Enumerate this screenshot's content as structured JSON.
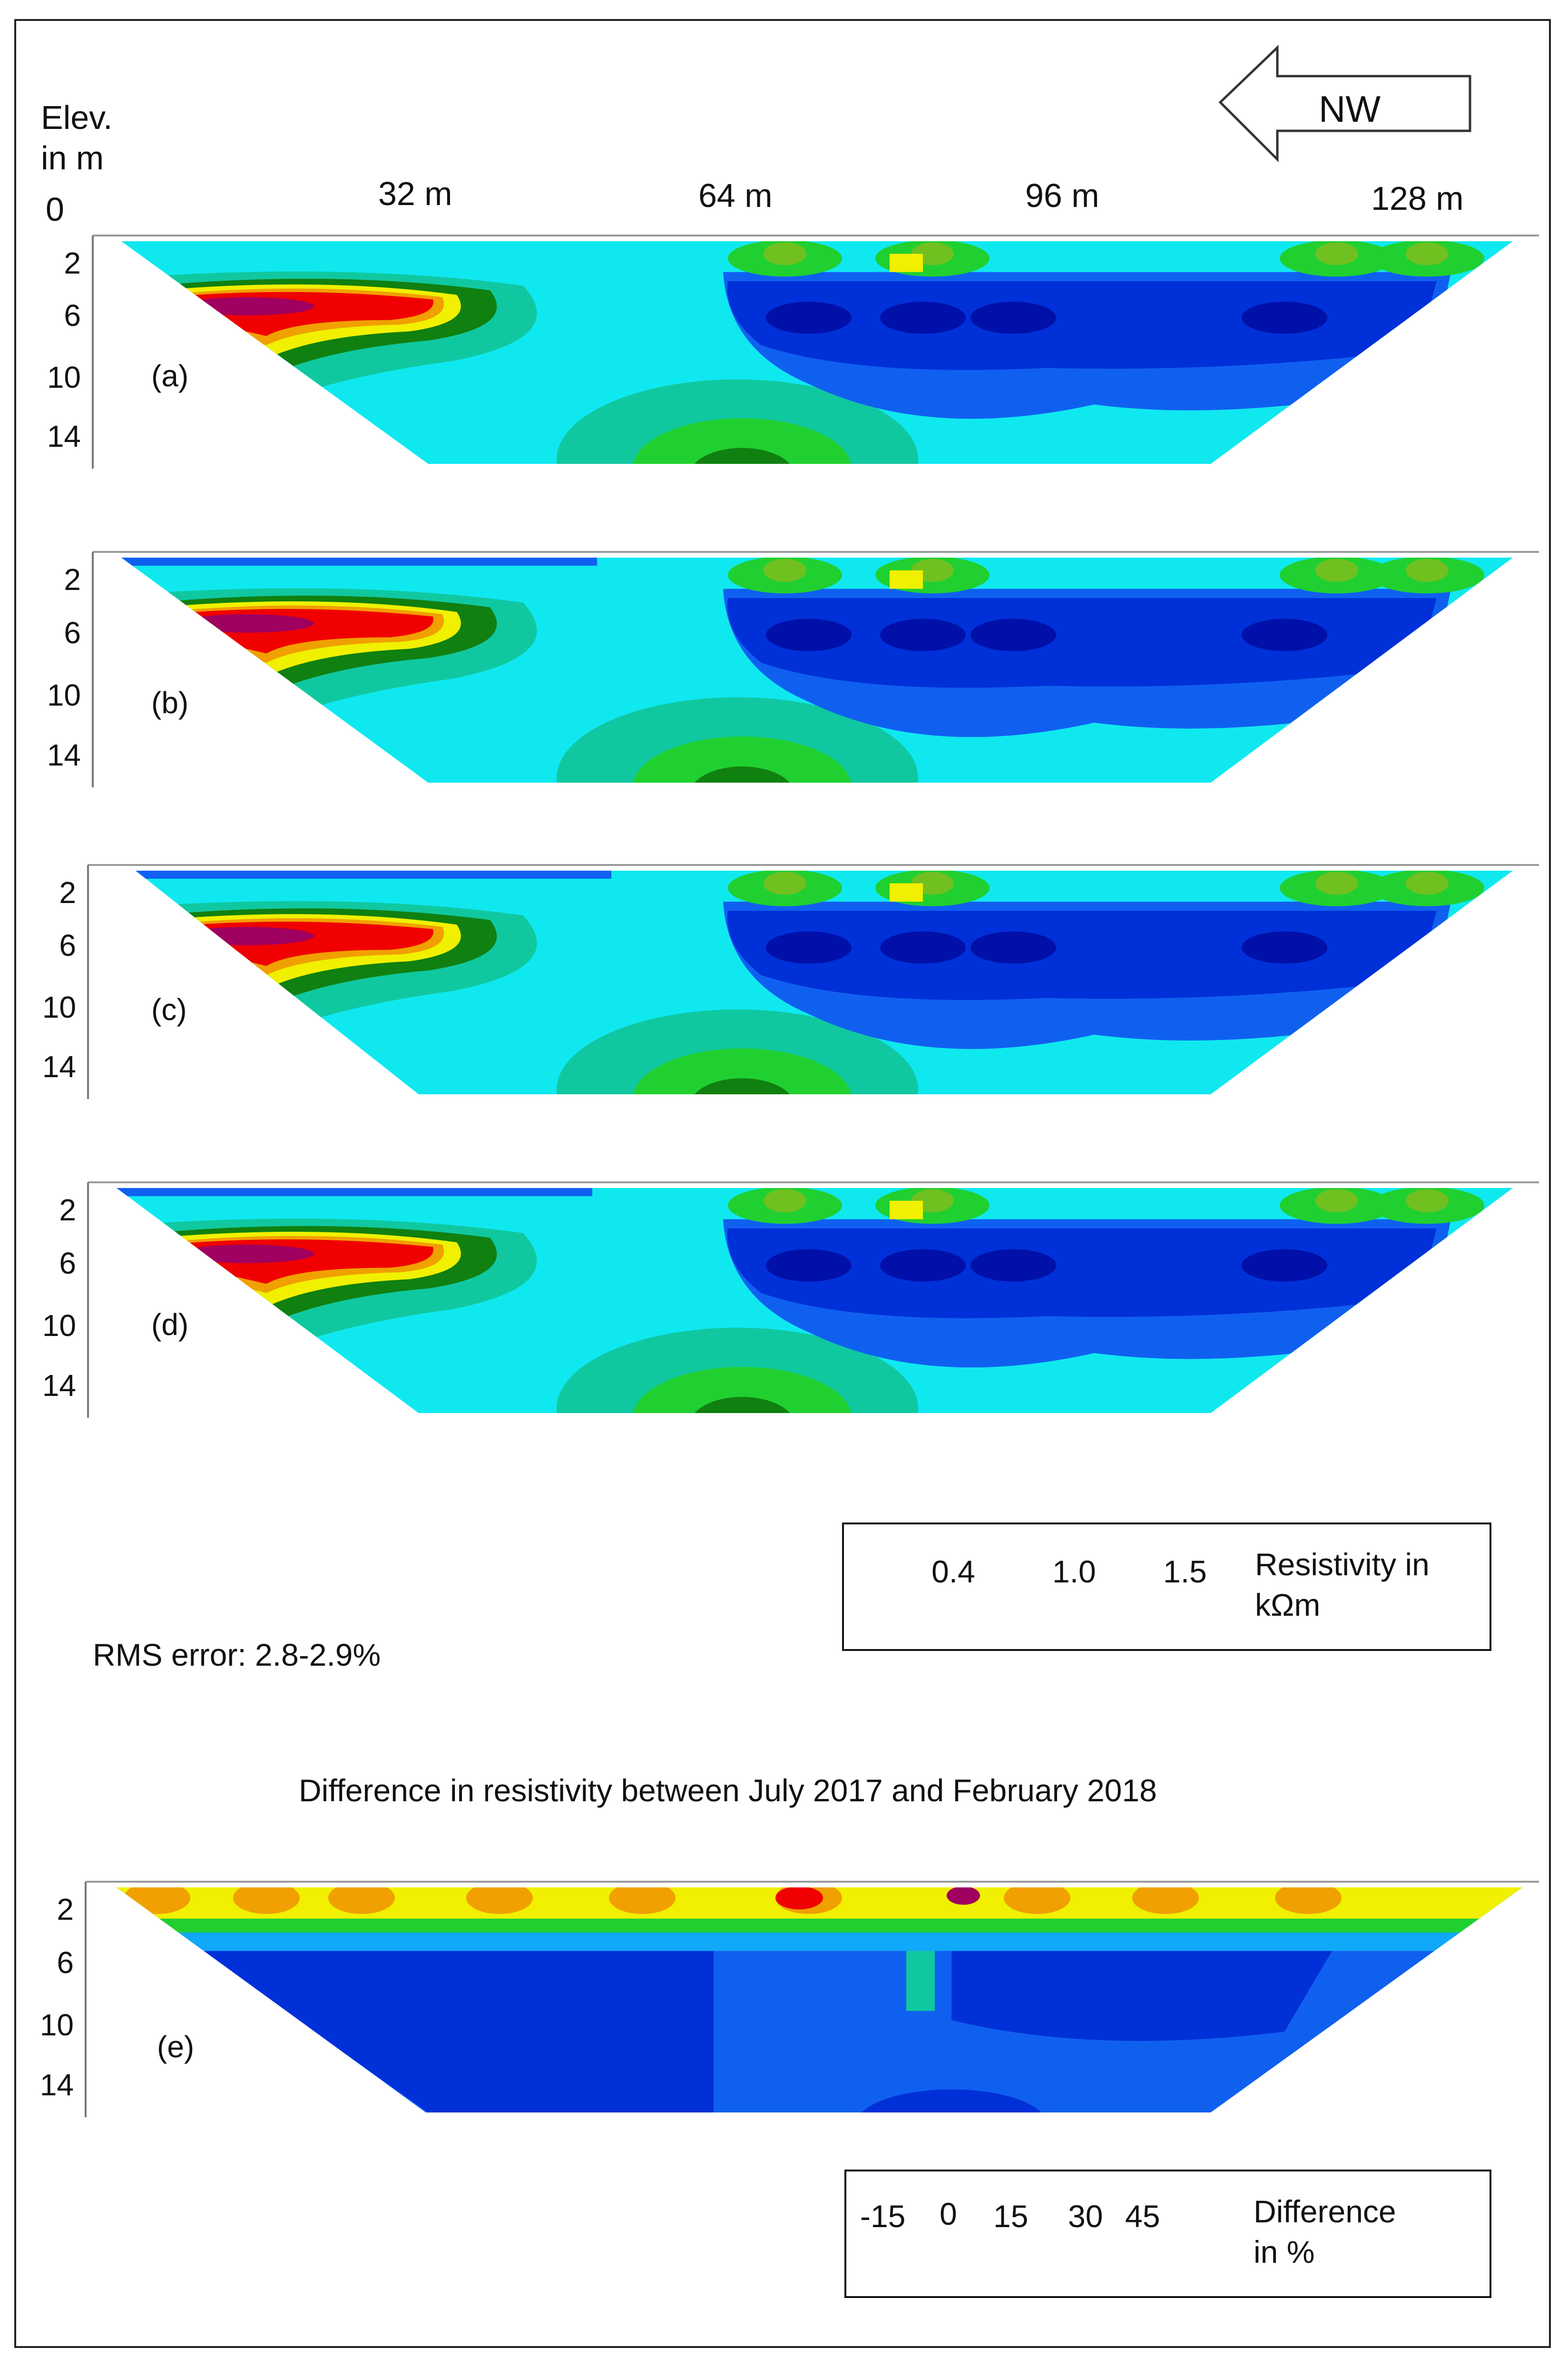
{
  "elev_label_1": "Elev.",
  "elev_label_2": "in m",
  "elev_zero": "0",
  "distance_ticks": [
    "32 m",
    "64 m",
    "96 m",
    "128 m"
  ],
  "direction": "NW",
  "depth_ticks": [
    "2",
    "6",
    "10",
    "14"
  ],
  "panels": [
    {
      "id": "a",
      "label": "(a)"
    },
    {
      "id": "b",
      "label": "(b)"
    },
    {
      "id": "c",
      "label": "(c)"
    },
    {
      "id": "d",
      "label": "(d)"
    },
    {
      "id": "e",
      "label": "(e)"
    }
  ],
  "rms_error": "RMS error: 2.8-2.9%",
  "difference_title": "Difference in resistivity between July 2017 and February 2018",
  "legend_resistivity": {
    "ticks": [
      "0.4",
      "1.0",
      "1.5"
    ],
    "title_1": "Resistivity in",
    "title_2": "kΩm"
  },
  "legend_difference": {
    "ticks": [
      "-15",
      "0",
      "15",
      "30",
      "45"
    ],
    "title_1": "Difference",
    "title_2": "in %"
  },
  "colors": {
    "scale": [
      "#00006a",
      "#0010a8",
      "#0030d8",
      "#1060f0",
      "#10a8f8",
      "#10e8f0",
      "#10c8a0",
      "#20d030",
      "#108010",
      "#70c020",
      "#f0f000",
      "#f0a000",
      "#f07010",
      "#f00000",
      "#d80020",
      "#a00060",
      "#600070"
    ]
  },
  "chart_data": {
    "type": "heatmap",
    "title": "Difference in resistivity between July 2017 and February 2018",
    "xlabel": "",
    "ylabel": "Elev. in m",
    "x_ticks": [
      32,
      64,
      96,
      128
    ],
    "x_unit": "m",
    "y_ticks": [
      2,
      6,
      10,
      14
    ],
    "y_range": [
      0,
      14
    ],
    "panels": [
      "(a)",
      "(b)",
      "(c)",
      "(d)",
      "(e)"
    ],
    "resistivity_scale_kohm_m": [
      0.4,
      1.0,
      1.5
    ],
    "difference_scale_percent": [
      -15,
      0,
      15,
      30,
      45
    ],
    "rms_error_percent": [
      2.8,
      2.9
    ]
  }
}
